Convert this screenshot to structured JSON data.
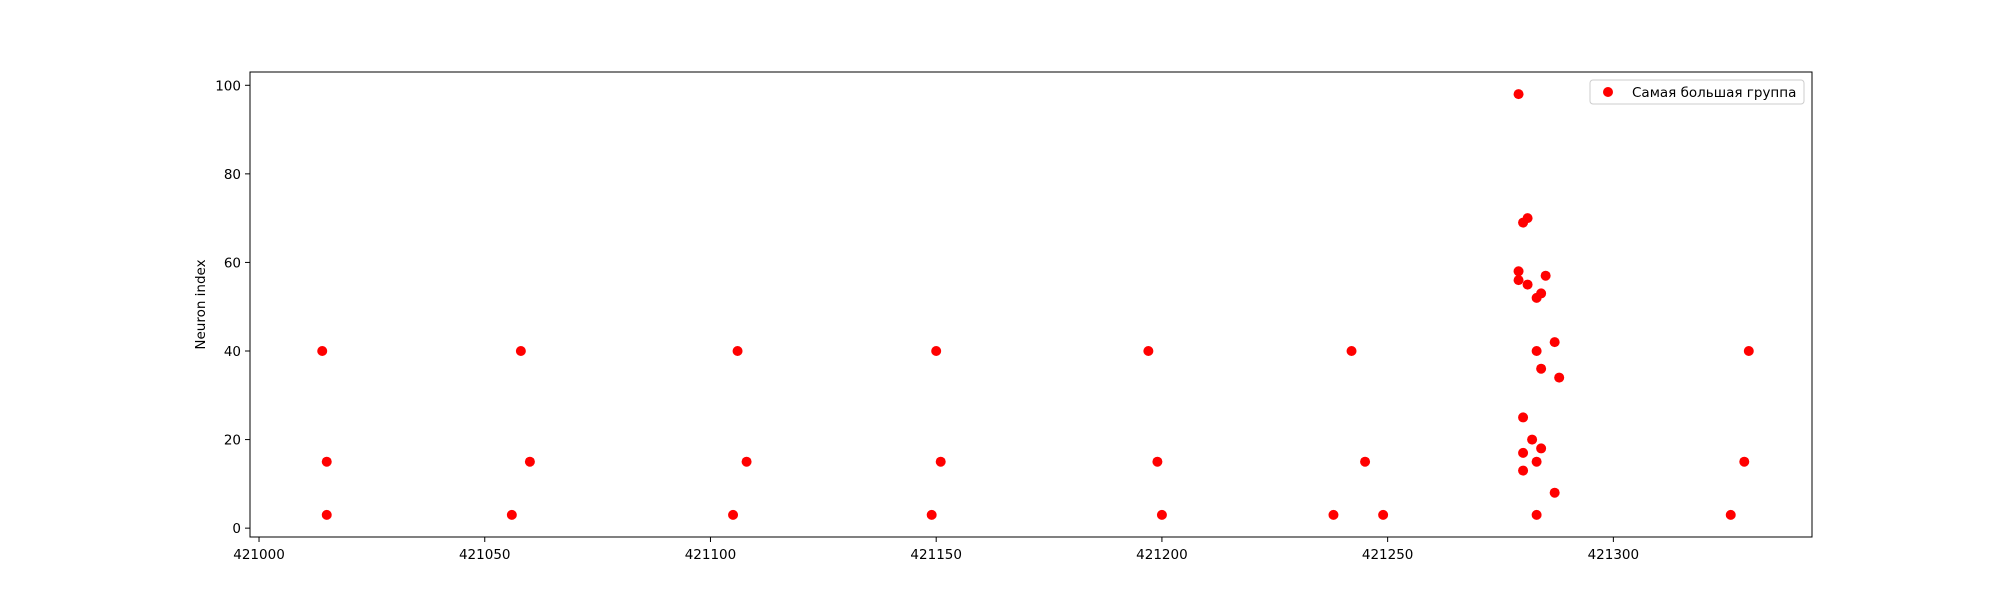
{
  "chart_data": {
    "type": "scatter",
    "xlabel": "",
    "ylabel": "Neuron index",
    "xlim": [
      420998,
      421344
    ],
    "ylim": [
      -2,
      103
    ],
    "xticks": [
      421000,
      421050,
      421100,
      421150,
      421200,
      421250,
      421300
    ],
    "yticks": [
      0,
      20,
      40,
      60,
      80,
      100
    ],
    "grid": false,
    "legend": {
      "placement": "top-right",
      "entries": [
        "Самая большая группа"
      ]
    },
    "series": [
      {
        "name": "Самая большая группа",
        "color": "#ff0000",
        "points": [
          [
            421014,
            40
          ],
          [
            421015,
            15
          ],
          [
            421015,
            3
          ],
          [
            421058,
            40
          ],
          [
            421060,
            15
          ],
          [
            421056,
            3
          ],
          [
            421106,
            40
          ],
          [
            421108,
            15
          ],
          [
            421105,
            3
          ],
          [
            421150,
            40
          ],
          [
            421151,
            15
          ],
          [
            421149,
            3
          ],
          [
            421197,
            40
          ],
          [
            421199,
            15
          ],
          [
            421200,
            3
          ],
          [
            421242,
            40
          ],
          [
            421245,
            15
          ],
          [
            421238,
            3
          ],
          [
            421249,
            3
          ],
          [
            421279,
            98
          ],
          [
            421281,
            70
          ],
          [
            421280,
            69
          ],
          [
            421279,
            58
          ],
          [
            421279,
            56
          ],
          [
            421281,
            55
          ],
          [
            421285,
            57
          ],
          [
            421283,
            52
          ],
          [
            421284,
            53
          ],
          [
            421283,
            40
          ],
          [
            421287,
            42
          ],
          [
            421284,
            36
          ],
          [
            421288,
            34
          ],
          [
            421280,
            25
          ],
          [
            421282,
            20
          ],
          [
            421284,
            18
          ],
          [
            421280,
            17
          ],
          [
            421283,
            15
          ],
          [
            421280,
            13
          ],
          [
            421287,
            8
          ],
          [
            421283,
            3
          ],
          [
            421330,
            40
          ],
          [
            421329,
            15
          ],
          [
            421326,
            3
          ]
        ]
      }
    ]
  }
}
